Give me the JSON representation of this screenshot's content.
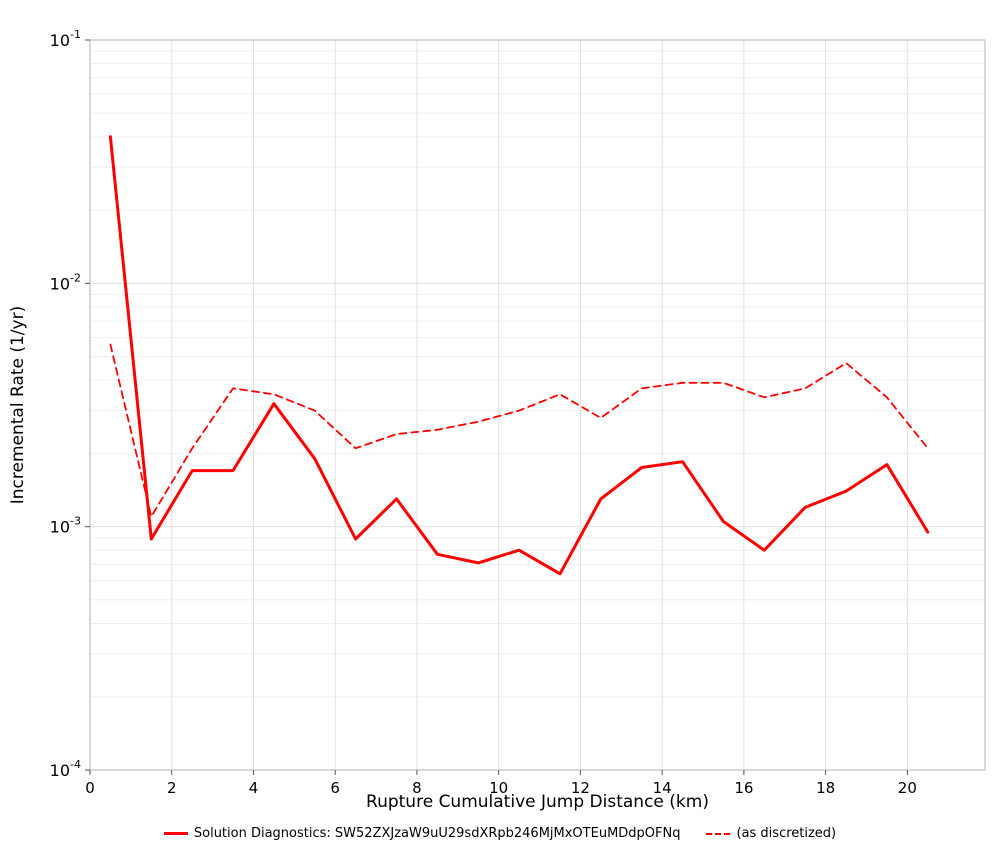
{
  "chart_data": {
    "type": "line",
    "title": "",
    "xlabel": "Rupture Cumulative Jump Distance (km)",
    "ylabel": "Incremental Rate (1/yr)",
    "xlim": [
      0,
      21.9
    ],
    "ylim_log": [
      -4,
      -1
    ],
    "x_ticks": [
      0,
      2,
      4,
      6,
      8,
      10,
      12,
      14,
      16,
      18,
      20
    ],
    "y_tick_exponents": [
      -1,
      -2,
      -3,
      -4
    ],
    "grid": "on",
    "minor_grid": "on",
    "legend_position": "bottom",
    "x": [
      0.5,
      1.5,
      2.5,
      3.5,
      4.5,
      5.5,
      6.5,
      7.5,
      8.5,
      9.5,
      10.5,
      11.5,
      12.5,
      13.5,
      14.5,
      15.5,
      16.5,
      17.5,
      18.5,
      19.5,
      20.5
    ],
    "series": [
      {
        "name": "Solution Diagnostics: SW52ZXJzaW9uU29sdXRpb246MjMxOTEuMDdpOFNq",
        "style": "solid",
        "color": "#ff0000",
        "width": 3,
        "values": [
          0.04,
          0.00089,
          0.0017,
          0.0017,
          0.0032,
          0.0019,
          0.00089,
          0.0013,
          0.00077,
          0.00071,
          0.0008,
          0.00064,
          0.0013,
          0.00175,
          0.00185,
          0.00105,
          0.0008,
          0.0012,
          0.0014,
          0.0018,
          0.00095
        ]
      },
      {
        "name": "(as discretized)",
        "style": "dashed",
        "color": "#ff0000",
        "width": 1.8,
        "values": [
          0.0056,
          0.0011,
          0.0021,
          0.0037,
          0.0035,
          0.003,
          0.0021,
          0.0024,
          0.0025,
          0.0027,
          0.003,
          0.0035,
          0.0028,
          0.0037,
          0.0039,
          0.0039,
          0.0034,
          0.0037,
          0.0047,
          0.0034,
          0.0021
        ]
      }
    ],
    "colors": {
      "grid_major": "#e0e0e0",
      "grid_minor": "#efefef",
      "frame": "#b3b3b3",
      "tick": "#555555",
      "text": "#000000",
      "background": "#ffffff"
    }
  }
}
